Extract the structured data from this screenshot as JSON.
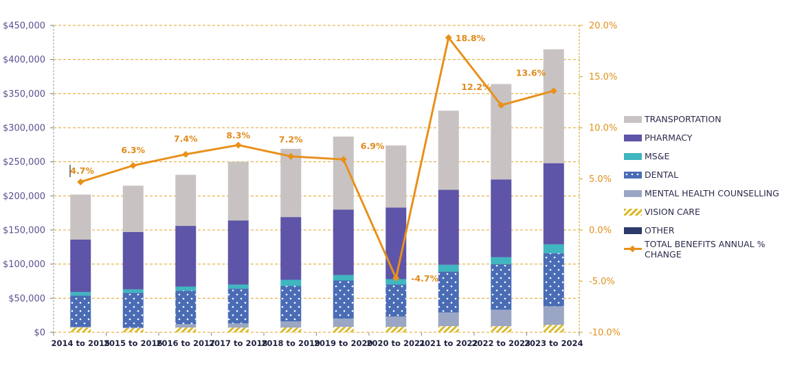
{
  "chart_data": {
    "type": "bar",
    "stacked": true,
    "title": "",
    "xlabel": "",
    "ylabel": "",
    "y2label": "",
    "categories": [
      "2014 to 2015",
      "2015 to 2016",
      "2016 to 2017",
      "2017 to 2018",
      "2018 to 2019",
      "2019 to 2020",
      "2020 to 2021",
      "2021 to 2022",
      "2022 to 2023",
      "2023 to 2024"
    ],
    "ylim": [
      0,
      450000
    ],
    "y_ticks": [
      0,
      50000,
      100000,
      150000,
      200000,
      250000,
      300000,
      350000,
      400000,
      450000
    ],
    "y_tick_labels": [
      "$0",
      "$50,000",
      "$100,000",
      "$150,000",
      "$200,000",
      "$250,000",
      "$300,000",
      "$350,000",
      "$400,000",
      "$450,000"
    ],
    "y2lim": [
      -10,
      20
    ],
    "y2_ticks": [
      -10,
      -5,
      0,
      5,
      10,
      15,
      20
    ],
    "y2_tick_labels": [
      "-10.0%",
      "-5.0%",
      "0.0%",
      "5.0%",
      "10.0%",
      "15.0%",
      "20.0%"
    ],
    "grid": true,
    "legend_position": "right",
    "series": [
      {
        "name": "OTHER",
        "color": "#2b3a6b",
        "pattern": "solid",
        "values": [
          0,
          0,
          0,
          0,
          0,
          0,
          0,
          0,
          0,
          0
        ]
      },
      {
        "name": "VISION CARE",
        "color": "#d9b92a",
        "pattern": "hatch",
        "values": [
          7000,
          6000,
          7000,
          7000,
          7000,
          8000,
          8000,
          9000,
          9000,
          11000
        ]
      },
      {
        "name": "MENTAL HEALTH COUNSELLING",
        "color": "#9aa6c4",
        "pattern": "solid",
        "values": [
          1000,
          1000,
          5000,
          6000,
          9000,
          12000,
          15000,
          20000,
          24000,
          27000
        ]
      },
      {
        "name": "DENTAL",
        "color": "#4a6cb5",
        "pattern": "dots",
        "values": [
          46000,
          51000,
          49000,
          51000,
          52000,
          56000,
          47000,
          60000,
          67000,
          78000
        ]
      },
      {
        "name": "MS&E",
        "color": "#3fb6c0",
        "pattern": "solid",
        "values": [
          5000,
          5000,
          6000,
          6000,
          9000,
          8000,
          8000,
          10000,
          10000,
          13000
        ]
      },
      {
        "name": "PHARMACY",
        "color": "#5e55a8",
        "pattern": "solid",
        "values": [
          77000,
          84000,
          89000,
          94000,
          92000,
          96000,
          105000,
          110000,
          114000,
          119000
        ]
      },
      {
        "name": "TRANSPORTATION",
        "color": "#c8c3c2",
        "pattern": "solid",
        "values": [
          66000,
          68000,
          75000,
          86000,
          100000,
          107000,
          91000,
          116000,
          140000,
          167000
        ]
      }
    ],
    "line_series": {
      "name": "TOTAL BENEFITS ANNUAL % CHANGE",
      "color": "#e8901a",
      "axis": "right",
      "values": [
        4.7,
        6.3,
        7.4,
        8.3,
        7.2,
        6.9,
        -4.7,
        18.8,
        12.2,
        13.6
      ],
      "labels": [
        "4.7%",
        "6.3%",
        "7.4%",
        "8.3%",
        "7.2%",
        "6.9%",
        "-4.7%",
        "18.8%",
        "12.2%",
        "13.6%"
      ]
    },
    "legend_order": [
      "TRANSPORTATION",
      "PHARMACY",
      "MS&E",
      "DENTAL",
      "MENTAL HEALTH COUNSELLING",
      "VISION CARE",
      "OTHER",
      "TOTAL BENEFITS ANNUAL % CHANGE"
    ]
  }
}
